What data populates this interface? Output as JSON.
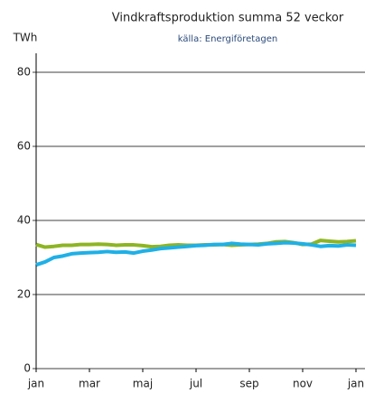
{
  "chart_data": {
    "type": "line",
    "title": "Vindkraftsproduktion summa 52 veckor",
    "subtitle": "källa: Energiföretagen",
    "y_label": "TWh",
    "categories": [
      "jan",
      null,
      null,
      null,
      null,
      null,
      "mar",
      null,
      null,
      null,
      null,
      null,
      "maj",
      null,
      null,
      null,
      null,
      null,
      "jul",
      null,
      null,
      null,
      null,
      null,
      "sep",
      null,
      null,
      null,
      null,
      null,
      "nov",
      null,
      null,
      null,
      null,
      null,
      "jan"
    ],
    "series": [
      {
        "color": "#8db523",
        "values": [
          33.5,
          32.8,
          33,
          33.3,
          33.3,
          33.5,
          33.5,
          33.6,
          33.5,
          33.3,
          33.4,
          33.4,
          33.2,
          32.9,
          33,
          33.3,
          33.4,
          33.3,
          33.3,
          33.4,
          33.4,
          33.5,
          33.3,
          33.4,
          33.5,
          33.6,
          33.8,
          34.2,
          34.3,
          34,
          33.5,
          33.6,
          34.6,
          34.4,
          34.2,
          34.3,
          34.5
        ]
      },
      {
        "color": "#1fb0e6",
        "values": [
          28,
          28.8,
          30,
          30.4,
          31,
          31.2,
          31.3,
          31.4,
          31.6,
          31.4,
          31.5,
          31.2,
          31.7,
          32,
          32.4,
          32.6,
          32.8,
          33,
          33.2,
          33.3,
          33.5,
          33.5,
          33.8,
          33.6,
          33.5,
          33.4,
          33.7,
          33.8,
          34,
          33.9,
          33.7,
          33.4,
          33,
          33.2,
          33.1,
          33.4,
          33.3
        ]
      }
    ],
    "ylim": [
      0,
      90
    ],
    "yticks": [
      0,
      20,
      40,
      60,
      80
    ],
    "grid": true
  }
}
